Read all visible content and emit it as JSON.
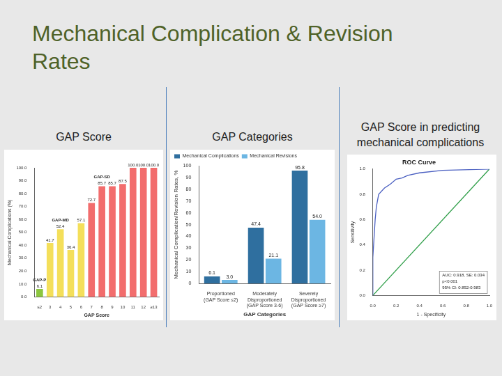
{
  "title": "Mechanical Complication & Revision Rates",
  "chart_data": [
    {
      "heading": "GAP Score",
      "type": "bar",
      "categories": [
        "≤2",
        "3",
        "4",
        "5",
        "6",
        "7",
        "8",
        "9",
        "10",
        "11",
        "12",
        "≥13"
      ],
      "values": [
        6.1,
        41.7,
        52.4,
        36.4,
        57.1,
        72.7,
        85.7,
        85.7,
        87.5,
        100,
        100,
        100
      ],
      "value_labels": [
        "6.1",
        "41.7",
        "52.4",
        "36.4",
        "57.1",
        "72.7",
        "85.7",
        "85.7",
        "87.5",
        "100.0",
        "100.0",
        "100.0"
      ],
      "colors": [
        "#8cc63f",
        "#f4df5a",
        "#f4df5a",
        "#f4df5a",
        "#f4df5a",
        "#f26d6d",
        "#f26d6d",
        "#f26d6d",
        "#f26d6d",
        "#f26d6d",
        "#f26d6d",
        "#f26d6d"
      ],
      "x_label": "GAP Score",
      "y_label": "Mechanical Complications (%)",
      "ylim": [
        0,
        100
      ],
      "yticks": [
        {
          "value": 0,
          "label": "0.0"
        },
        {
          "value": 10,
          "label": "10.0"
        },
        {
          "value": 20,
          "label": "20.0"
        },
        {
          "value": 30,
          "label": "30.0"
        },
        {
          "value": 40,
          "label": "40.0"
        },
        {
          "value": 50,
          "label": "50.0"
        },
        {
          "value": 60,
          "label": "60.0"
        },
        {
          "value": 70,
          "label": "70.0"
        },
        {
          "value": 80,
          "label": "80.0"
        },
        {
          "value": 90,
          "label": "90.0"
        },
        {
          "value": 100,
          "label": "100.0"
        }
      ],
      "annotations": [
        {
          "text": "GAP-P",
          "category": "≤2"
        },
        {
          "text": "GAP-MD",
          "category": "4"
        },
        {
          "text": "GAP-SD",
          "category": "8"
        }
      ],
      "grid": false,
      "data_labels": true
    },
    {
      "heading": "GAP Categories",
      "type": "bar",
      "categories": [
        "Proportioned (GAP Score ≤2)",
        "Moderately Disproportioned (GAP Score 3-6)",
        "Severely Disproportioned (GAP Score ≥7)"
      ],
      "series": [
        {
          "name": "Mechanical Complications",
          "color": "#2f6f9f",
          "values": [
            6.1,
            47.4,
            95.8
          ],
          "value_labels": [
            "6.1",
            "47.4",
            "95.8"
          ]
        },
        {
          "name": "Mechanical Revisions",
          "color": "#6cb6e3",
          "values": [
            3.0,
            21.1,
            54.0
          ],
          "value_labels": [
            "3.0",
            "21.1",
            "54.0"
          ]
        }
      ],
      "x_label": "GAP Categories",
      "y_label": "Mechanical Complication/Revision Rates, %",
      "ylim": [
        0,
        100
      ],
      "yticks": [
        0,
        10,
        20,
        30,
        40,
        50,
        60,
        70,
        80,
        90,
        100
      ],
      "legend": "top-left",
      "grid": false,
      "data_labels": true
    },
    {
      "heading": "GAP Score in predicting mechanical complications",
      "type": "line",
      "title": "ROC Curve",
      "x_label": "1 - Specificity",
      "y_label": "Sensitivity",
      "xlim": [
        0,
        1
      ],
      "ylim": [
        0,
        1
      ],
      "xticks": [
        {
          "value": 0,
          "label": "0.0"
        },
        {
          "value": 0.2,
          "label": "0.2"
        },
        {
          "value": 0.4,
          "label": "0.4"
        },
        {
          "value": 0.6,
          "label": "0.6"
        },
        {
          "value": 0.8,
          "label": "0.8"
        },
        {
          "value": 1,
          "label": "1.0"
        }
      ],
      "yticks": [
        {
          "value": 0,
          "label": "0.0"
        },
        {
          "value": 0.2,
          "label": "0.2"
        },
        {
          "value": 0.4,
          "label": "0.4"
        },
        {
          "value": 0.6,
          "label": "0.6"
        },
        {
          "value": 0.8,
          "label": "0.8"
        },
        {
          "value": 1,
          "label": "1.0"
        }
      ],
      "series": [
        {
          "color": "#4a5fc1",
          "marker": "none",
          "line_style": "solid",
          "x": [
            0,
            0,
            0.02,
            0.03,
            0.05,
            0.1,
            0.15,
            0.2,
            0.25,
            0.3,
            0.4,
            0.6,
            1
          ],
          "values": [
            0,
            0.3,
            0.6,
            0.7,
            0.8,
            0.85,
            0.88,
            0.92,
            0.93,
            0.95,
            0.97,
            0.99,
            1
          ]
        },
        {
          "color": "#2e9e48",
          "marker": "none",
          "line_style": "solid",
          "x": [
            0,
            1
          ],
          "values": [
            0,
            1
          ]
        }
      ],
      "annotations": [
        "AUC: 0.918, SE: 0.034",
        "p<0.001",
        "95% CI: 0.852-0.983"
      ],
      "grid": false
    }
  ]
}
